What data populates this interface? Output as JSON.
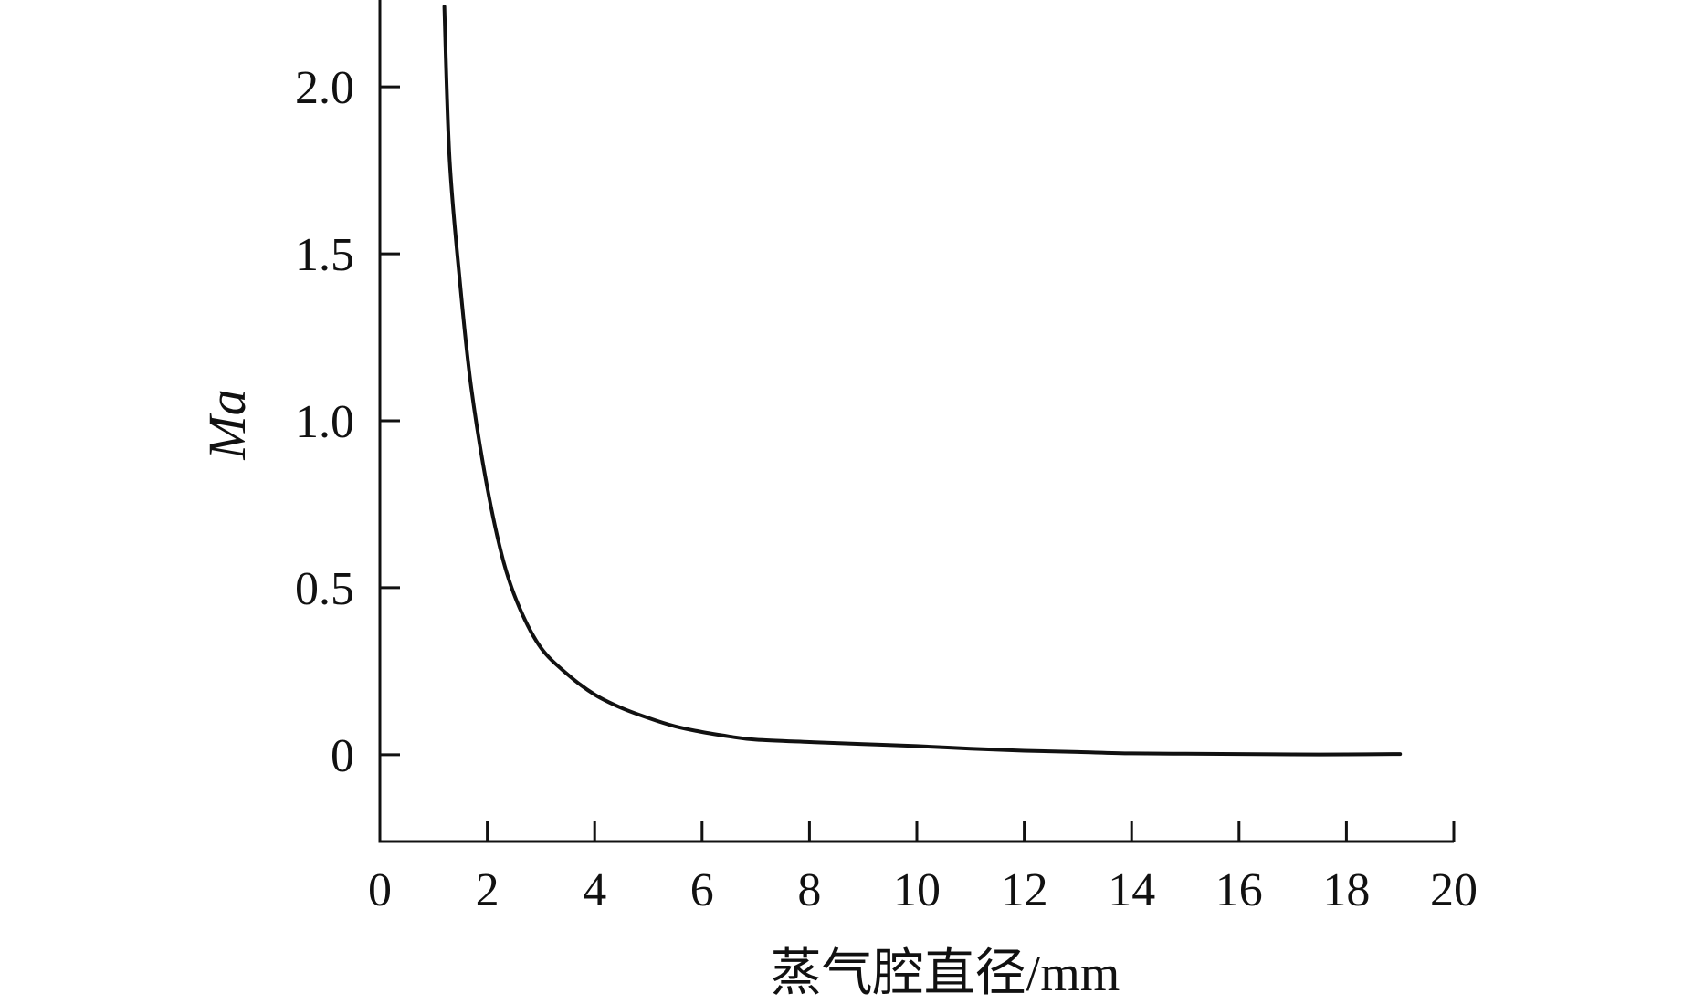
{
  "chart_data": {
    "type": "line",
    "title": "",
    "xlabel": "蒸气腔直径/mm",
    "ylabel": "Ma",
    "xlim": [
      0,
      20
    ],
    "ylim": [
      -0.26,
      2.26
    ],
    "xticks": [
      "0",
      "2",
      "4",
      "6",
      "8",
      "10",
      "12",
      "14",
      "16",
      "18",
      "20"
    ],
    "yticks": [
      "0",
      "0.5",
      "1.0",
      "1.5",
      "2.0"
    ],
    "grid": false,
    "line_color": "#111111",
    "series": [
      {
        "x": [
          1.2,
          1.3,
          1.5,
          1.7,
          2.0,
          2.3,
          2.6,
          3.0,
          3.5,
          4.0,
          4.5,
          5.0,
          5.5,
          6.0,
          6.5,
          7.0,
          8.0,
          9.0,
          10.0,
          11.0,
          12.0,
          13.0,
          14.0,
          15.0,
          16.0,
          17.0,
          18.0,
          19.0
        ],
        "y": [
          2.24,
          1.78,
          1.4,
          1.1,
          0.8,
          0.58,
          0.44,
          0.32,
          0.24,
          0.18,
          0.14,
          0.11,
          0.085,
          0.068,
          0.055,
          0.045,
          0.038,
          0.032,
          0.026,
          0.018,
          0.012,
          0.008,
          0.004,
          0.003,
          0.002,
          0.001,
          0.001,
          0.002
        ]
      }
    ]
  }
}
